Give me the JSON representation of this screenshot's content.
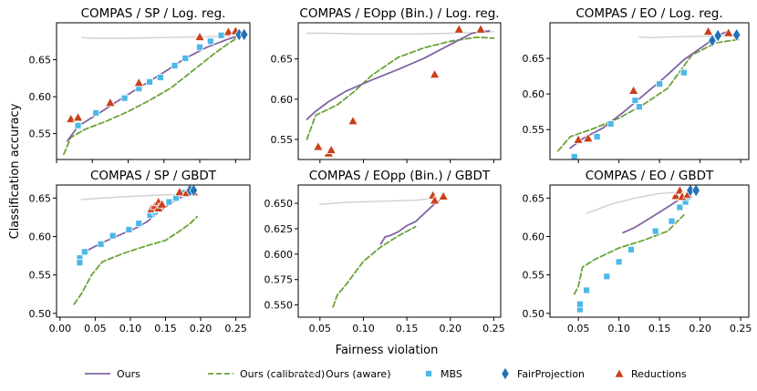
{
  "figure": {
    "xlabel": "Fairness violation",
    "ylabel": "Classification accuracy"
  },
  "colors": {
    "ours": "#8064a2",
    "ours_calibrated": "#6aa339",
    "ours_aware": "#d0d0d0",
    "mbs": "#4cb8e6",
    "fairprojection": "#2271b5",
    "reductions": "#c9401b"
  },
  "legend": [
    {
      "key": "ours",
      "label": "Ours",
      "marker": "line-solid"
    },
    {
      "key": "ours_calibrated",
      "label": "Ours (calibrated)",
      "marker": "line-dashed"
    },
    {
      "key": "ours_aware",
      "label": "Ours (aware)",
      "marker": "line-solid"
    },
    {
      "key": "mbs",
      "label": "MBS",
      "marker": "square"
    },
    {
      "key": "fairprojection",
      "label": "FairProjection",
      "marker": "diamond"
    },
    {
      "key": "reductions",
      "label": "Reductions",
      "marker": "triangle"
    }
  ],
  "chart_data": [
    {
      "type": "line",
      "title": "COMPAS / SP / Log. reg.",
      "xlim": [
        0,
        0.27
      ],
      "ylim": [
        0.515,
        0.7
      ],
      "xticks": [],
      "xtick_labels": [],
      "yticks": [
        0.55,
        0.6,
        0.65
      ],
      "ytick_labels": [
        "0.55",
        "0.60",
        "0.65"
      ],
      "series": [
        {
          "key": "ours_aware",
          "x": [
            0.035,
            0.05,
            0.1,
            0.15,
            0.2,
            0.25
          ],
          "y": [
            0.68,
            0.679,
            0.679,
            0.68,
            0.681,
            0.682
          ]
        },
        {
          "key": "ours",
          "x": [
            0.015,
            0.03,
            0.06,
            0.09,
            0.12,
            0.15,
            0.18,
            0.21,
            0.24,
            0.255
          ],
          "y": [
            0.54,
            0.56,
            0.578,
            0.597,
            0.615,
            0.633,
            0.652,
            0.667,
            0.678,
            0.682
          ]
        },
        {
          "key": "ours_calibrated",
          "x": [
            0.01,
            0.02,
            0.04,
            0.07,
            0.1,
            0.13,
            0.16,
            0.19,
            0.22,
            0.24,
            0.25
          ],
          "y": [
            0.522,
            0.545,
            0.556,
            0.567,
            0.58,
            0.595,
            0.612,
            0.635,
            0.658,
            0.672,
            0.678
          ]
        },
        {
          "key": "mbs",
          "x": [
            0.03,
            0.055,
            0.095,
            0.115,
            0.13,
            0.145,
            0.165,
            0.18,
            0.2,
            0.215,
            0.23
          ],
          "y": [
            0.561,
            0.578,
            0.598,
            0.611,
            0.62,
            0.626,
            0.642,
            0.652,
            0.667,
            0.675,
            0.683
          ]
        },
        {
          "key": "reductions",
          "x": [
            0.02,
            0.03,
            0.075,
            0.115,
            0.2,
            0.24,
            0.25
          ],
          "y": [
            0.57,
            0.572,
            0.592,
            0.619,
            0.681,
            0.688,
            0.689
          ]
        },
        {
          "key": "fairprojection",
          "x": [
            0.255,
            0.262
          ],
          "y": [
            0.684,
            0.684
          ]
        }
      ]
    },
    {
      "type": "line",
      "title": "COMPAS / EOpp (Bin.) / Log. reg.",
      "xlim": [
        0.025,
        0.258
      ],
      "ylim": [
        0.525,
        0.695
      ],
      "xticks": [],
      "xtick_labels": [],
      "yticks": [
        0.55,
        0.6,
        0.65
      ],
      "ytick_labels": [
        "0.55",
        "0.60",
        "0.65"
      ],
      "series": [
        {
          "key": "ours_aware",
          "x": [
            0.035,
            0.06,
            0.1,
            0.15,
            0.2,
            0.24,
            0.25
          ],
          "y": [
            0.682,
            0.682,
            0.681,
            0.681,
            0.682,
            0.683,
            0.684
          ]
        },
        {
          "key": "ours",
          "x": [
            0.035,
            0.045,
            0.06,
            0.08,
            0.11,
            0.14,
            0.17,
            0.2,
            0.225,
            0.245
          ],
          "y": [
            0.575,
            0.585,
            0.597,
            0.61,
            0.624,
            0.637,
            0.651,
            0.668,
            0.682,
            0.685
          ]
        },
        {
          "key": "ours_calibrated",
          "x": [
            0.035,
            0.045,
            0.07,
            0.09,
            0.11,
            0.14,
            0.17,
            0.2,
            0.23,
            0.25
          ],
          "y": [
            0.55,
            0.58,
            0.593,
            0.61,
            0.63,
            0.652,
            0.664,
            0.672,
            0.677,
            0.676
          ]
        },
        {
          "key": "reductions",
          "x": [
            0.048,
            0.06,
            0.063,
            0.088,
            0.182,
            0.21,
            0.235
          ],
          "y": [
            0.541,
            0.533,
            0.537,
            0.573,
            0.631,
            0.687,
            0.687
          ]
        }
      ]
    },
    {
      "type": "line",
      "title": "COMPAS / EO / Log. reg.",
      "xlim": [
        0.015,
        0.26
      ],
      "ylim": [
        0.508,
        0.7
      ],
      "xticks": [],
      "xtick_labels": [],
      "yticks": [
        0.55,
        0.6,
        0.65
      ],
      "ytick_labels": [
        "0.55",
        "0.60",
        "0.65"
      ],
      "series": [
        {
          "key": "ours_aware",
          "x": [
            0.125,
            0.14,
            0.16,
            0.2,
            0.24,
            0.25
          ],
          "y": [
            0.68,
            0.679,
            0.68,
            0.681,
            0.682,
            0.682
          ]
        },
        {
          "key": "ours",
          "x": [
            0.04,
            0.055,
            0.08,
            0.105,
            0.13,
            0.155,
            0.18,
            0.205,
            0.225,
            0.235
          ],
          "y": [
            0.524,
            0.537,
            0.552,
            0.574,
            0.598,
            0.622,
            0.648,
            0.668,
            0.684,
            0.688
          ]
        },
        {
          "key": "ours_calibrated",
          "x": [
            0.025,
            0.04,
            0.07,
            0.1,
            0.13,
            0.16,
            0.19,
            0.22,
            0.25
          ],
          "y": [
            0.52,
            0.54,
            0.552,
            0.566,
            0.585,
            0.608,
            0.655,
            0.672,
            0.677
          ]
        },
        {
          "key": "mbs",
          "x": [
            0.045,
            0.073,
            0.09,
            0.12,
            0.125,
            0.15,
            0.18
          ],
          "y": [
            0.512,
            0.54,
            0.558,
            0.591,
            0.582,
            0.614,
            0.63
          ]
        },
        {
          "key": "reductions",
          "x": [
            0.05,
            0.062,
            0.118,
            0.21,
            0.235
          ],
          "y": [
            0.536,
            0.538,
            0.605,
            0.688,
            0.686
          ]
        },
        {
          "key": "fairprojection",
          "x": [
            0.215,
            0.222,
            0.245
          ],
          "y": [
            0.675,
            0.682,
            0.683
          ]
        }
      ]
    },
    {
      "type": "line",
      "title": "COMPAS / SP / GBDT",
      "xlim": [
        -0.005,
        0.27
      ],
      "ylim": [
        0.495,
        0.667
      ],
      "xticks": [
        0.0,
        0.05,
        0.1,
        0.15,
        0.2,
        0.25
      ],
      "xtick_labels": [
        "0.00",
        "0.05",
        "0.10",
        "0.15",
        "0.20",
        "0.25"
      ],
      "yticks": [
        0.5,
        0.55,
        0.6,
        0.65
      ],
      "ytick_labels": [
        "0.50",
        "0.55",
        "0.60",
        "0.65"
      ],
      "series": [
        {
          "key": "ours_aware",
          "x": [
            0.03,
            0.06,
            0.1,
            0.14,
            0.18
          ],
          "y": [
            0.648,
            0.65,
            0.652,
            0.654,
            0.655
          ]
        },
        {
          "key": "ours",
          "x": [
            0.025,
            0.035,
            0.06,
            0.09,
            0.11,
            0.125,
            0.14,
            0.16,
            0.18,
            0.19
          ],
          "y": [
            0.565,
            0.58,
            0.592,
            0.604,
            0.612,
            0.62,
            0.632,
            0.645,
            0.655,
            0.66
          ]
        },
        {
          "key": "ours_calibrated",
          "x": [
            0.02,
            0.03,
            0.045,
            0.06,
            0.09,
            0.12,
            0.15,
            0.17,
            0.185,
            0.195
          ],
          "y": [
            0.512,
            0.525,
            0.55,
            0.567,
            0.578,
            0.587,
            0.595,
            0.607,
            0.617,
            0.626
          ]
        },
        {
          "key": "mbs",
          "x": [
            0.028,
            0.028,
            0.035,
            0.058,
            0.075,
            0.098,
            0.112,
            0.128,
            0.135,
            0.14,
            0.155,
            0.165,
            0.175,
            0.185
          ],
          "y": [
            0.572,
            0.566,
            0.58,
            0.59,
            0.601,
            0.609,
            0.617,
            0.628,
            0.632,
            0.637,
            0.645,
            0.65,
            0.657,
            0.662
          ]
        },
        {
          "key": "reductions",
          "x": [
            0.13,
            0.135,
            0.14,
            0.14,
            0.145,
            0.17,
            0.18,
            0.19
          ],
          "y": [
            0.636,
            0.64,
            0.645,
            0.637,
            0.642,
            0.658,
            0.657,
            0.658
          ]
        },
        {
          "key": "fairprojection",
          "x": [
            0.185,
            0.19
          ],
          "y": [
            0.66,
            0.66
          ]
        }
      ]
    },
    {
      "type": "line",
      "title": "COMPAS / EOpp (Bin.) / GBDT",
      "xlim": [
        0.025,
        0.258
      ],
      "ylim": [
        0.538,
        0.668
      ],
      "xticks": [
        0.05,
        0.1,
        0.15,
        0.2,
        0.25
      ],
      "xtick_labels": [
        "0.05",
        "0.10",
        "0.15",
        "0.20",
        "0.25"
      ],
      "yticks": [
        0.55,
        0.575,
        0.6,
        0.625,
        0.65
      ],
      "ytick_labels": [
        "0.550",
        "0.575",
        "0.600",
        "0.625",
        "0.650"
      ],
      "series": [
        {
          "key": "ours_aware",
          "x": [
            0.05,
            0.08,
            0.12,
            0.16,
            0.185
          ],
          "y": [
            0.649,
            0.651,
            0.652,
            0.653,
            0.655
          ]
        },
        {
          "key": "ours",
          "x": [
            0.12,
            0.125,
            0.13,
            0.14,
            0.15,
            0.16,
            0.17,
            0.18,
            0.19
          ],
          "y": [
            0.61,
            0.617,
            0.618,
            0.622,
            0.628,
            0.632,
            0.64,
            0.648,
            0.655
          ]
        },
        {
          "key": "ours_calibrated",
          "x": [
            0.065,
            0.07,
            0.08,
            0.1,
            0.12,
            0.14,
            0.16
          ],
          "y": [
            0.548,
            0.56,
            0.57,
            0.593,
            0.607,
            0.618,
            0.627
          ]
        },
        {
          "key": "reductions",
          "x": [
            0.18,
            0.182,
            0.192
          ],
          "y": [
            0.658,
            0.653,
            0.657
          ]
        }
      ]
    },
    {
      "type": "line",
      "title": "COMPAS / EO / GBDT",
      "xlim": [
        0.015,
        0.26
      ],
      "ylim": [
        0.495,
        0.667
      ],
      "xticks": [
        0.05,
        0.1,
        0.15,
        0.2,
        0.25
      ],
      "xtick_labels": [
        "0.05",
        "0.10",
        "0.15",
        "0.20",
        "0.25"
      ],
      "yticks": [
        0.5,
        0.55,
        0.6,
        0.65
      ],
      "ytick_labels": [
        "0.50",
        "0.55",
        "0.60",
        "0.65"
      ],
      "series": [
        {
          "key": "ours_aware",
          "x": [
            0.06,
            0.09,
            0.12,
            0.15,
            0.18
          ],
          "y": [
            0.63,
            0.642,
            0.65,
            0.656,
            0.658
          ]
        },
        {
          "key": "ours",
          "x": [
            0.105,
            0.12,
            0.14,
            0.155,
            0.17,
            0.185
          ],
          "y": [
            0.605,
            0.612,
            0.625,
            0.635,
            0.645,
            0.655
          ]
        },
        {
          "key": "ours_calibrated",
          "x": [
            0.045,
            0.05,
            0.055,
            0.07,
            0.1,
            0.13,
            0.16,
            0.18
          ],
          "y": [
            0.525,
            0.535,
            0.56,
            0.57,
            0.585,
            0.595,
            0.607,
            0.628
          ]
        },
        {
          "key": "mbs",
          "x": [
            0.052,
            0.052,
            0.06,
            0.085,
            0.1,
            0.115,
            0.145,
            0.165,
            0.175,
            0.182,
            0.185
          ],
          "y": [
            0.505,
            0.512,
            0.53,
            0.548,
            0.567,
            0.583,
            0.607,
            0.62,
            0.638,
            0.645,
            0.652
          ]
        },
        {
          "key": "reductions",
          "x": [
            0.17,
            0.175,
            0.178,
            0.185
          ],
          "y": [
            0.653,
            0.66,
            0.652,
            0.655
          ]
        },
        {
          "key": "fairprojection",
          "x": [
            0.188,
            0.195
          ],
          "y": [
            0.66,
            0.66
          ]
        }
      ]
    }
  ]
}
